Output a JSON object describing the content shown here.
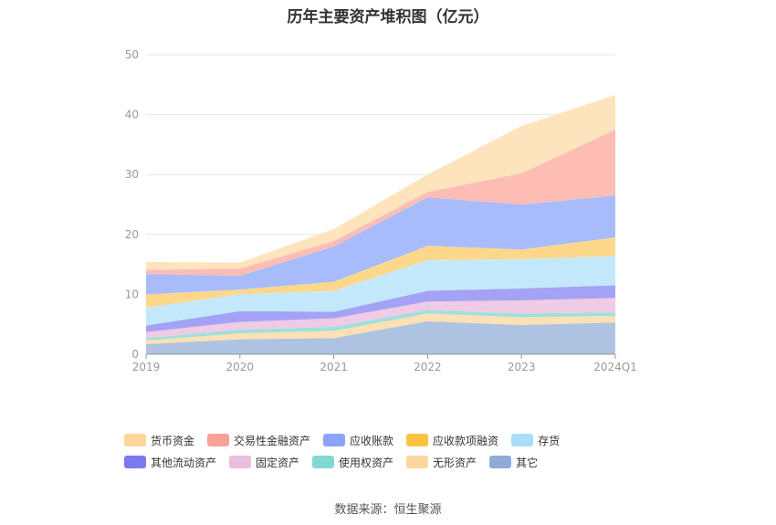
{
  "chart_data": {
    "type": "area",
    "stacked": true,
    "title": "历年主要资产堆积图（亿元）",
    "source": "数据来源：恒生聚源",
    "x": [
      "2019",
      "2020",
      "2021",
      "2022",
      "2023",
      "2024Q1"
    ],
    "ylim": [
      0,
      50
    ],
    "yticks": [
      0,
      10,
      20,
      30,
      40,
      50
    ],
    "grid": true,
    "legend_position": "bottom",
    "series": [
      {
        "name": "其它",
        "color": "#aec2e2",
        "values": [
          1.7,
          2.5,
          2.7,
          5.5,
          4.9,
          5.3
        ]
      },
      {
        "name": "无形资产",
        "color": "#fde0b4",
        "values": [
          0.6,
          1.0,
          1.2,
          1.3,
          1.3,
          1.1
        ]
      },
      {
        "name": "使用权资产",
        "color": "#9ee0dc",
        "values": [
          0.4,
          0.6,
          0.7,
          0.6,
          0.6,
          0.6
        ]
      },
      {
        "name": "固定资产",
        "color": "#f0cbe5",
        "values": [
          1.0,
          1.3,
          1.4,
          1.4,
          2.2,
          2.4
        ]
      },
      {
        "name": "其他流动资产",
        "color": "#a4a2f4",
        "values": [
          1.1,
          1.8,
          1.1,
          1.8,
          2.0,
          2.1
        ]
      },
      {
        "name": "存货",
        "color": "#c4e8fb",
        "values": [
          3.0,
          2.8,
          3.5,
          5.1,
          4.9,
          4.9
        ]
      },
      {
        "name": "应收款项融资",
        "color": "#fdd88a",
        "values": [
          2.2,
          0.8,
          1.5,
          2.4,
          1.6,
          3.1
        ]
      },
      {
        "name": "应收账款",
        "color": "#a8bcfc",
        "values": [
          3.4,
          2.3,
          5.9,
          8.1,
          7.5,
          7.0
        ]
      },
      {
        "name": "交易性金融资产",
        "color": "#fdbcb4",
        "values": [
          0.7,
          1.2,
          0.9,
          0.9,
          5.2,
          11.0
        ]
      },
      {
        "name": "货币资金",
        "color": "#fde4bc",
        "values": [
          1.3,
          1.0,
          2.0,
          2.9,
          7.9,
          5.8
        ]
      }
    ],
    "legend_order": [
      "货币资金",
      "交易性金融资产",
      "应收账款",
      "应收款项融资",
      "存货",
      "其他流动资产",
      "固定资产",
      "使用权资产",
      "无形资产",
      "其它"
    ],
    "legend_colors": {
      "货币资金": "#fdd79a",
      "交易性金融资产": "#f9a396",
      "应收账款": "#8aa4fa",
      "应收款项融资": "#fdc244",
      "存货": "#a9def8",
      "其他流动资产": "#7b79ee",
      "固定资产": "#e9bede",
      "使用权资产": "#84d8d4",
      "无形资产": "#fdd69c",
      "其它": "#8fabd8"
    },
    "axis_color": "#999999",
    "grid_color": "#e6e6e6",
    "tick_label_color": "#999999"
  }
}
